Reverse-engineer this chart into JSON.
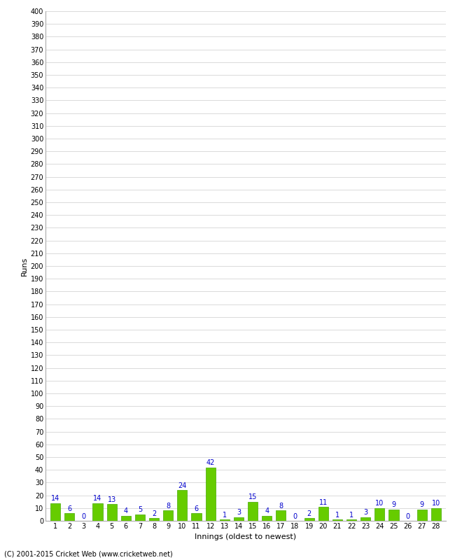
{
  "innings": [
    1,
    2,
    3,
    4,
    5,
    6,
    7,
    8,
    9,
    10,
    11,
    12,
    13,
    14,
    15,
    16,
    17,
    18,
    19,
    20,
    21,
    22,
    23,
    24,
    25,
    26,
    27,
    28
  ],
  "runs": [
    14,
    6,
    0,
    14,
    13,
    4,
    5,
    2,
    8,
    24,
    6,
    42,
    1,
    3,
    15,
    4,
    8,
    0,
    2,
    11,
    1,
    1,
    3,
    10,
    9,
    0,
    9,
    10
  ],
  "bar_color": "#66cc00",
  "bar_edge_color": "#44aa00",
  "label_color": "#0000cc",
  "ylabel": "Runs",
  "xlabel": "Innings (oldest to newest)",
  "ylim": [
    0,
    400
  ],
  "bg_color": "#ffffff",
  "grid_color": "#cccccc",
  "footer": "(C) 2001-2015 Cricket Web (www.cricketweb.net)",
  "label_fontsize": 7,
  "axis_tick_fontsize": 7,
  "axis_label_fontsize": 8,
  "footer_fontsize": 7
}
